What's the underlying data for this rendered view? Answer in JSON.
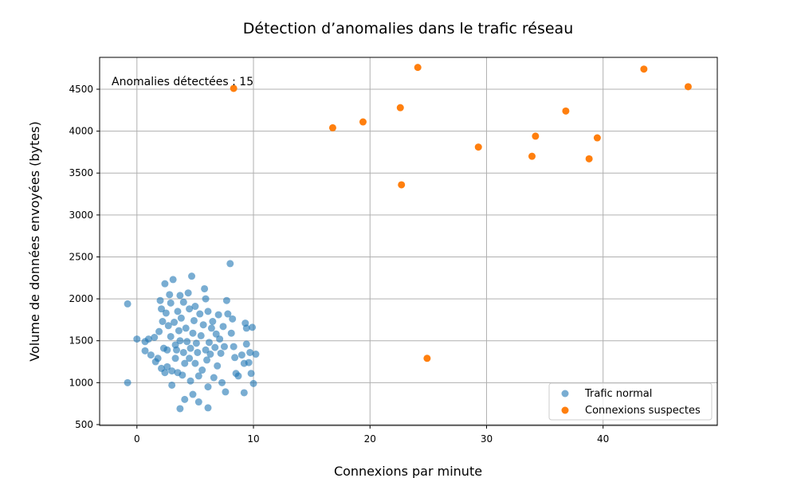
{
  "chart_data": {
    "type": "scatter",
    "title": "Détection d’anomalies dans le trafic réseau",
    "xlabel": "Connexions par minute",
    "ylabel": "Volume de données envoyées (bytes)",
    "xlim": [
      -3.2,
      49.8
    ],
    "ylim": [
      490,
      4880
    ],
    "xticks": [
      0,
      10,
      20,
      30,
      40
    ],
    "yticks": [
      500,
      1000,
      1500,
      2000,
      2500,
      3000,
      3500,
      4000,
      4500
    ],
    "grid": true,
    "legend_position": "lower-right",
    "annotation": "Anomalies détectées : 15",
    "colors": {
      "normal": "#1f77b4",
      "suspect": "#ff7f0e"
    },
    "series": [
      {
        "name": "Trafic normal",
        "alpha": 0.6,
        "points": [
          [
            -0.8,
            1940
          ],
          [
            -0.8,
            1000
          ],
          [
            0,
            1520
          ],
          [
            0.7,
            1490
          ],
          [
            0.7,
            1380
          ],
          [
            1,
            1520
          ],
          [
            1.2,
            1330
          ],
          [
            1.5,
            1540
          ],
          [
            1.6,
            1250
          ],
          [
            1.8,
            1290
          ],
          [
            1.9,
            1610
          ],
          [
            2,
            1980
          ],
          [
            2.1,
            1880
          ],
          [
            2.1,
            1170
          ],
          [
            2.2,
            1730
          ],
          [
            2.3,
            1410
          ],
          [
            2.4,
            2180
          ],
          [
            2.4,
            1120
          ],
          [
            2.5,
            1830
          ],
          [
            2.6,
            1390
          ],
          [
            2.6,
            1190
          ],
          [
            2.7,
            1680
          ],
          [
            2.8,
            2050
          ],
          [
            2.9,
            1950
          ],
          [
            2.9,
            1550
          ],
          [
            3,
            1140
          ],
          [
            3,
            970
          ],
          [
            3.1,
            2230
          ],
          [
            3.2,
            1720
          ],
          [
            3.3,
            1450
          ],
          [
            3.3,
            1290
          ],
          [
            3.4,
            1390
          ],
          [
            3.5,
            1850
          ],
          [
            3.5,
            1120
          ],
          [
            3.6,
            1620
          ],
          [
            3.7,
            2040
          ],
          [
            3.7,
            1500
          ],
          [
            3.7,
            690
          ],
          [
            3.8,
            1770
          ],
          [
            3.9,
            1090
          ],
          [
            4,
            1960
          ],
          [
            4,
            1360
          ],
          [
            4.1,
            1230
          ],
          [
            4.1,
            800
          ],
          [
            4.2,
            1650
          ],
          [
            4.3,
            1490
          ],
          [
            4.4,
            2070
          ],
          [
            4.5,
            1880
          ],
          [
            4.5,
            1290
          ],
          [
            4.6,
            1410
          ],
          [
            4.6,
            1020
          ],
          [
            4.7,
            2270
          ],
          [
            4.8,
            1590
          ],
          [
            4.8,
            860
          ],
          [
            4.9,
            1740
          ],
          [
            5,
            1910
          ],
          [
            5,
            1230
          ],
          [
            5.1,
            1470
          ],
          [
            5.2,
            1360
          ],
          [
            5.3,
            1080
          ],
          [
            5.3,
            770
          ],
          [
            5.4,
            1820
          ],
          [
            5.5,
            1560
          ],
          [
            5.6,
            1150
          ],
          [
            5.7,
            1690
          ],
          [
            5.8,
            2120
          ],
          [
            5.9,
            2000
          ],
          [
            5.9,
            1390
          ],
          [
            6,
            1270
          ],
          [
            6.1,
            1850
          ],
          [
            6.1,
            950
          ],
          [
            6.1,
            700
          ],
          [
            6.2,
            1480
          ],
          [
            6.3,
            1340
          ],
          [
            6.4,
            1650
          ],
          [
            6.5,
            1730
          ],
          [
            6.6,
            1060
          ],
          [
            6.7,
            1420
          ],
          [
            6.8,
            1580
          ],
          [
            6.9,
            1200
          ],
          [
            7,
            1810
          ],
          [
            7.1,
            1520
          ],
          [
            7.2,
            1350
          ],
          [
            7.3,
            1000
          ],
          [
            7.4,
            1670
          ],
          [
            7.5,
            1430
          ],
          [
            7.6,
            890
          ],
          [
            7.7,
            1980
          ],
          [
            7.8,
            1820
          ],
          [
            8,
            2420
          ],
          [
            8.1,
            1590
          ],
          [
            8.2,
            1760
          ],
          [
            8.3,
            1430
          ],
          [
            8.4,
            1300
          ],
          [
            8.5,
            1110
          ],
          [
            8.7,
            1080
          ],
          [
            9,
            1330
          ],
          [
            9.2,
            880
          ],
          [
            9.2,
            1230
          ],
          [
            9.3,
            1710
          ],
          [
            9.4,
            1650
          ],
          [
            9.4,
            1460
          ],
          [
            9.6,
            1240
          ],
          [
            9.7,
            1360
          ],
          [
            9.8,
            1110
          ],
          [
            9.9,
            1660
          ],
          [
            10,
            990
          ],
          [
            10.2,
            1340
          ]
        ]
      },
      {
        "name": "Connexions suspectes",
        "alpha": 1,
        "points": [
          [
            8.3,
            4510
          ],
          [
            16.8,
            4040
          ],
          [
            19.4,
            4110
          ],
          [
            22.6,
            4280
          ],
          [
            22.7,
            3360
          ],
          [
            24.1,
            4760
          ],
          [
            24.9,
            1290
          ],
          [
            29.3,
            3810
          ],
          [
            33.9,
            3700
          ],
          [
            34.2,
            3940
          ],
          [
            36.8,
            4240
          ],
          [
            38.8,
            3670
          ],
          [
            39.5,
            3920
          ],
          [
            43.5,
            4740
          ],
          [
            47.3,
            4530
          ]
        ]
      }
    ]
  }
}
